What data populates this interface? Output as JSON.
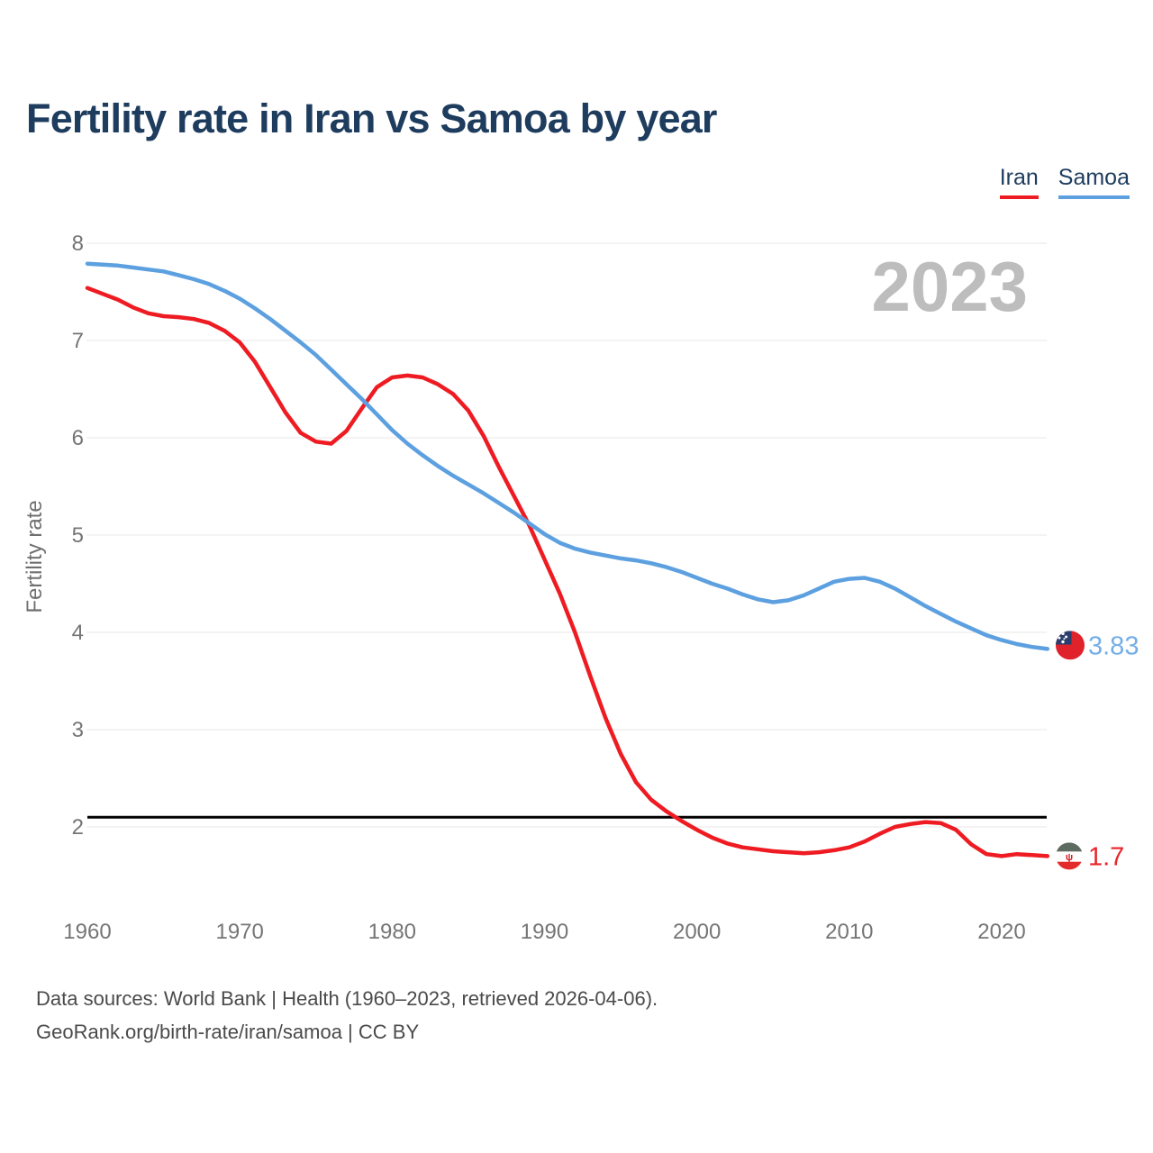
{
  "title": "Fertility rate in Iran vs Samoa by year",
  "watermark_year": "2023",
  "legend": [
    {
      "label": "Iran",
      "underline_color": "#ee1c22"
    },
    {
      "label": "Samoa",
      "underline_color": "#5da0e0"
    }
  ],
  "y_axis": {
    "title": "Fertility rate",
    "ticks": [
      8,
      7,
      6,
      5,
      4,
      3,
      2
    ]
  },
  "x_axis": {
    "ticks": [
      1960,
      1970,
      1980,
      1990,
      2000,
      2010,
      2020
    ]
  },
  "end_labels": [
    {
      "series": "Samoa",
      "value": "3.83",
      "color": "#74aee6",
      "flag": "samoa-flag-icon"
    },
    {
      "series": "Iran",
      "value": "1.7",
      "color": "#e8242a",
      "flag": "iran-flag-icon"
    }
  ],
  "footer": {
    "line1": "Data sources: World Bank | Health (1960–2023, retrieved 2026-04-06).",
    "line2": "GeoRank.org/birth-rate/iran/samoa | CC BY"
  },
  "chart_data": {
    "type": "line",
    "title": "Fertility rate in Iran vs Samoa by year",
    "xlabel": "",
    "ylabel": "Fertility rate",
    "xlim": [
      1960,
      2023
    ],
    "ylim": [
      1.5,
      8.2
    ],
    "grid": "horizontal",
    "legend_position": "top-right",
    "reference_line": {
      "value": 2.1,
      "color": "#000000",
      "meaning": "replacement fertility level"
    },
    "x": [
      1960,
      1961,
      1962,
      1963,
      1964,
      1965,
      1966,
      1967,
      1968,
      1969,
      1970,
      1971,
      1972,
      1973,
      1974,
      1975,
      1976,
      1977,
      1978,
      1979,
      1980,
      1981,
      1982,
      1983,
      1984,
      1985,
      1986,
      1987,
      1988,
      1989,
      1990,
      1991,
      1992,
      1993,
      1994,
      1995,
      1996,
      1997,
      1998,
      1999,
      2000,
      2001,
      2002,
      2003,
      2004,
      2005,
      2006,
      2007,
      2008,
      2009,
      2010,
      2011,
      2012,
      2013,
      2014,
      2015,
      2016,
      2017,
      2018,
      2019,
      2020,
      2021,
      2022,
      2023
    ],
    "series": [
      {
        "name": "Iran",
        "color": "#ee1c22",
        "end_value": 1.7,
        "values": [
          7.54,
          7.48,
          7.42,
          7.34,
          7.28,
          7.25,
          7.24,
          7.22,
          7.18,
          7.1,
          6.98,
          6.78,
          6.52,
          6.26,
          6.05,
          5.96,
          5.94,
          6.07,
          6.3,
          6.52,
          6.62,
          6.64,
          6.62,
          6.55,
          6.45,
          6.28,
          6.02,
          5.7,
          5.4,
          5.1,
          4.75,
          4.4,
          4.0,
          3.55,
          3.12,
          2.75,
          2.46,
          2.28,
          2.16,
          2.06,
          1.97,
          1.89,
          1.83,
          1.79,
          1.77,
          1.75,
          1.74,
          1.73,
          1.74,
          1.76,
          1.79,
          1.85,
          1.93,
          2.0,
          2.03,
          2.05,
          2.04,
          1.97,
          1.82,
          1.72,
          1.7,
          1.72,
          1.71,
          1.7
        ]
      },
      {
        "name": "Samoa",
        "color": "#5da0e0",
        "end_value": 3.83,
        "values": [
          7.79,
          7.78,
          7.77,
          7.75,
          7.73,
          7.71,
          7.67,
          7.63,
          7.58,
          7.51,
          7.43,
          7.33,
          7.22,
          7.1,
          6.98,
          6.85,
          6.7,
          6.55,
          6.4,
          6.24,
          6.08,
          5.94,
          5.82,
          5.71,
          5.61,
          5.52,
          5.43,
          5.33,
          5.23,
          5.12,
          5.01,
          4.92,
          4.86,
          4.82,
          4.79,
          4.76,
          4.74,
          4.71,
          4.67,
          4.62,
          4.56,
          4.5,
          4.45,
          4.39,
          4.34,
          4.31,
          4.33,
          4.38,
          4.45,
          4.52,
          4.55,
          4.56,
          4.52,
          4.45,
          4.36,
          4.27,
          4.19,
          4.11,
          4.04,
          3.97,
          3.92,
          3.88,
          3.85,
          3.83
        ]
      }
    ]
  }
}
